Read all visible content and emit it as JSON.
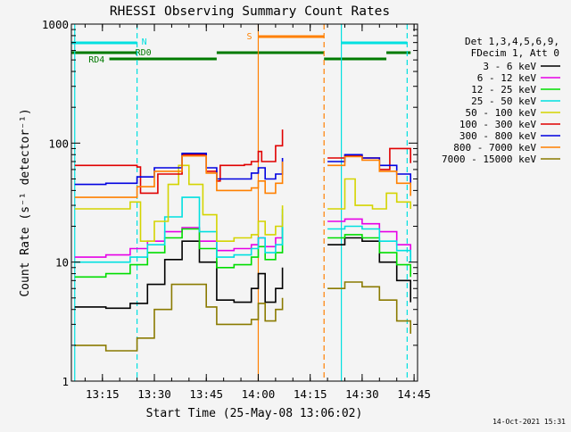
{
  "chart_data": {
    "type": "line",
    "title": "RHESSI Observing Summary Count Rates",
    "xlabel": "Start Time (25-May-08 13:06:02)",
    "ylabel": "Count Rate (s⁻¹ detector⁻¹)",
    "yscale": "log",
    "ylim": [
      1,
      1000
    ],
    "xlim": [
      "13:06:02",
      "14:46:00"
    ],
    "x_ticks": [
      "13:15",
      "13:30",
      "13:45",
      "14:00",
      "14:15",
      "14:30",
      "14:45"
    ],
    "y_ticks": [
      "1",
      "10",
      "100",
      "1000"
    ],
    "grid": false,
    "timestamp": "14-Oct-2021 15:31",
    "legend": {
      "placement": "right",
      "header": [
        "Det 1,3,4,5,6,9,",
        "FDecim 1, Att 0"
      ],
      "entries": [
        {
          "label": "3 - 6 keV",
          "color": "#000000"
        },
        {
          "label": "6 - 12 keV",
          "color": "#e600e6"
        },
        {
          "label": "12 - 25 keV",
          "color": "#00dd00"
        },
        {
          "label": "25 - 50 keV",
          "color": "#00e0e0"
        },
        {
          "label": "50 - 100 keV",
          "color": "#d4d400"
        },
        {
          "label": "100 - 300 keV",
          "color": "#e00000"
        },
        {
          "label": "300 - 800 keV",
          "color": "#0000e0"
        },
        {
          "label": "800 - 7000 keV",
          "color": "#ff8000"
        },
        {
          "label": "7000 - 15000 keV",
          "color": "#8a7a00"
        }
      ]
    },
    "flag_labels": {
      "n": "N",
      "rd0": "RD0",
      "rd4": "RD4",
      "s": "S"
    },
    "flags": {
      "night": {
        "color": "#00e0e0",
        "intervals": [
          [
            "13:06",
            "13:25"
          ],
          [
            "14:24",
            "14:43"
          ]
        ]
      },
      "rd0": {
        "color": "#007a00",
        "intervals": [
          [
            "13:06",
            "13:25"
          ],
          [
            "13:48",
            "14:19"
          ],
          [
            "14:37",
            "14:44"
          ]
        ]
      },
      "rd4": {
        "color": "#007a00",
        "intervals": [
          [
            "13:17",
            "13:48"
          ],
          [
            "14:19",
            "14:37"
          ]
        ]
      },
      "saa": {
        "color": "#ff8000",
        "intervals": [
          [
            "14:00",
            "14:19"
          ]
        ]
      }
    },
    "markers": [
      {
        "time": "13:07",
        "color": "#00e0e0",
        "style": "solid"
      },
      {
        "time": "13:25",
        "color": "#00e0e0",
        "style": "dashed"
      },
      {
        "time": "14:00",
        "color": "#ff8000",
        "style": "solid"
      },
      {
        "time": "14:19",
        "color": "#ff8000",
        "style": "dashed"
      },
      {
        "time": "14:24",
        "color": "#00e0e0",
        "style": "solid"
      },
      {
        "time": "14:43",
        "color": "#00e0e0",
        "style": "dashed"
      }
    ],
    "series": [
      {
        "name": "3 - 6 keV",
        "color": "#000000",
        "points": [
          [
            "13:07",
            4.2
          ],
          [
            "13:16",
            4.1
          ],
          [
            "13:23",
            4.5
          ],
          [
            "13:28",
            6.5
          ],
          [
            "13:33",
            10.5
          ],
          [
            "13:38",
            15.0
          ],
          [
            "13:43",
            10.0
          ],
          [
            "13:48",
            4.8
          ],
          [
            "13:53",
            4.6
          ],
          [
            "13:58",
            6.0
          ],
          [
            "14:00",
            8.0
          ],
          [
            "14:02",
            4.6
          ],
          [
            "14:05",
            6.0
          ],
          [
            "14:07",
            9.0
          ],
          null,
          [
            "14:20",
            14.0
          ],
          [
            "14:25",
            16.0
          ],
          [
            "14:30",
            15.0
          ],
          [
            "14:35",
            10.0
          ],
          [
            "14:40",
            7.0
          ],
          [
            "14:44",
            4.6
          ]
        ]
      },
      {
        "name": "6 - 12 keV",
        "color": "#e600e6",
        "points": [
          [
            "13:07",
            11.0
          ],
          [
            "13:16",
            11.5
          ],
          [
            "13:23",
            13.0
          ],
          [
            "13:28",
            15.0
          ],
          [
            "13:33",
            18.0
          ],
          [
            "13:38",
            19.5
          ],
          [
            "13:43",
            15.0
          ],
          [
            "13:48",
            12.5
          ],
          [
            "13:53",
            13.0
          ],
          [
            "13:58",
            14.0
          ],
          [
            "14:00",
            16.0
          ],
          [
            "14:02",
            13.5
          ],
          [
            "14:05",
            16.0
          ],
          [
            "14:07",
            25.0
          ],
          null,
          [
            "14:20",
            22.0
          ],
          [
            "14:25",
            23.0
          ],
          [
            "14:30",
            21.0
          ],
          [
            "14:35",
            18.0
          ],
          [
            "14:40",
            14.0
          ],
          [
            "14:44",
            11.0
          ]
        ]
      },
      {
        "name": "12 - 25 keV",
        "color": "#00dd00",
        "points": [
          [
            "13:07",
            7.5
          ],
          [
            "13:16",
            8.0
          ],
          [
            "13:23",
            9.5
          ],
          [
            "13:28",
            12.0
          ],
          [
            "13:33",
            16.0
          ],
          [
            "13:38",
            19.0
          ],
          [
            "13:43",
            13.0
          ],
          [
            "13:48",
            9.0
          ],
          [
            "13:53",
            9.5
          ],
          [
            "13:58",
            11.0
          ],
          [
            "14:00",
            13.5
          ],
          [
            "14:02",
            10.5
          ],
          [
            "14:05",
            12.0
          ],
          [
            "14:07",
            20.0
          ],
          null,
          [
            "14:20",
            16.0
          ],
          [
            "14:25",
            17.0
          ],
          [
            "14:30",
            16.0
          ],
          [
            "14:35",
            12.0
          ],
          [
            "14:40",
            9.5
          ],
          [
            "14:44",
            7.5
          ]
        ]
      },
      {
        "name": "25 - 50 keV",
        "color": "#00e0e0",
        "points": [
          [
            "13:07",
            10.0
          ],
          [
            "13:16",
            10.0
          ],
          [
            "13:23",
            11.0
          ],
          [
            "13:28",
            14.0
          ],
          [
            "13:33",
            24.0
          ],
          [
            "13:38",
            35.0
          ],
          [
            "13:43",
            18.0
          ],
          [
            "13:48",
            11.0
          ],
          [
            "13:53",
            11.5
          ],
          [
            "13:58",
            13.0
          ],
          [
            "14:00",
            16.0
          ],
          [
            "14:02",
            12.0
          ],
          [
            "14:05",
            14.0
          ],
          [
            "14:07",
            28.0
          ],
          null,
          [
            "14:20",
            19.0
          ],
          [
            "14:25",
            20.0
          ],
          [
            "14:30",
            19.0
          ],
          [
            "14:35",
            15.0
          ],
          [
            "14:40",
            12.5
          ],
          [
            "14:44",
            10.0
          ]
        ]
      },
      {
        "name": "50 - 100 keV",
        "color": "#d4d400",
        "points": [
          [
            "13:07",
            28.0
          ],
          [
            "13:16",
            28.0
          ],
          [
            "13:23",
            32.0
          ],
          [
            "13:26",
            15.0
          ],
          [
            "13:30",
            22.0
          ],
          [
            "13:34",
            45.0
          ],
          [
            "13:37",
            65.0
          ],
          [
            "13:40",
            45.0
          ],
          [
            "13:44",
            25.0
          ],
          [
            "13:48",
            15.0
          ],
          [
            "13:53",
            16.0
          ],
          [
            "13:58",
            17.0
          ],
          [
            "14:00",
            22.0
          ],
          [
            "14:02",
            17.0
          ],
          [
            "14:05",
            20.0
          ],
          [
            "14:07",
            30.0
          ],
          null,
          [
            "14:20",
            28.0
          ],
          [
            "14:25",
            50.0
          ],
          [
            "14:28",
            30.0
          ],
          [
            "14:33",
            28.0
          ],
          [
            "14:37",
            38.0
          ],
          [
            "14:40",
            32.0
          ],
          [
            "14:44",
            28.0
          ]
        ]
      },
      {
        "name": "100 - 300 keV",
        "color": "#e00000",
        "points": [
          [
            "13:07",
            65.0
          ],
          [
            "13:16",
            65.0
          ],
          [
            "13:25",
            63.0
          ],
          [
            "13:26",
            38.0
          ],
          [
            "13:31",
            55.0
          ],
          [
            "13:38",
            80.0
          ],
          [
            "13:45",
            58.0
          ],
          [
            "13:48",
            48.0
          ],
          [
            "13:49",
            65.0
          ],
          [
            "13:56",
            66.0
          ],
          [
            "13:58",
            70.0
          ],
          [
            "14:00",
            85.0
          ],
          [
            "14:01",
            70.0
          ],
          [
            "14:05",
            95.0
          ],
          [
            "14:07",
            130.0
          ],
          null,
          [
            "14:20",
            75.0
          ],
          [
            "14:25",
            78.0
          ],
          [
            "14:30",
            75.0
          ],
          [
            "14:35",
            60.0
          ],
          [
            "14:38",
            90.0
          ],
          [
            "14:44",
            68.0
          ]
        ]
      },
      {
        "name": "300 - 800 keV",
        "color": "#0000e0",
        "points": [
          [
            "13:07",
            45.0
          ],
          [
            "13:16",
            46.0
          ],
          [
            "13:25",
            52.0
          ],
          [
            "13:30",
            62.0
          ],
          [
            "13:38",
            82.0
          ],
          [
            "13:45",
            62.0
          ],
          [
            "13:48",
            50.0
          ],
          [
            "13:53",
            50.0
          ],
          [
            "13:58",
            56.0
          ],
          [
            "14:00",
            62.0
          ],
          [
            "14:02",
            50.0
          ],
          [
            "14:05",
            55.0
          ],
          [
            "14:07",
            75.0
          ],
          null,
          [
            "14:20",
            70.0
          ],
          [
            "14:25",
            80.0
          ],
          [
            "14:30",
            75.0
          ],
          [
            "14:35",
            65.0
          ],
          [
            "14:40",
            55.0
          ],
          [
            "14:44",
            45.0
          ]
        ]
      },
      {
        "name": "800 - 7000 keV",
        "color": "#ff8000",
        "points": [
          [
            "13:07",
            35.0
          ],
          [
            "13:16",
            35.0
          ],
          [
            "13:25",
            43.0
          ],
          [
            "13:30",
            58.0
          ],
          [
            "13:38",
            78.0
          ],
          [
            "13:45",
            56.0
          ],
          [
            "13:48",
            40.0
          ],
          [
            "13:53",
            40.0
          ],
          [
            "13:58",
            42.0
          ],
          [
            "14:00",
            48.0
          ],
          [
            "14:02",
            38.0
          ],
          [
            "14:05",
            46.0
          ],
          [
            "14:07",
            70.0
          ],
          null,
          [
            "14:20",
            65.0
          ],
          [
            "14:25",
            77.0
          ],
          [
            "14:30",
            72.0
          ],
          [
            "14:35",
            58.0
          ],
          [
            "14:40",
            46.0
          ],
          [
            "14:44",
            36.0
          ]
        ]
      },
      {
        "name": "7000 - 15000 keV",
        "color": "#8a7a00",
        "points": [
          [
            "13:07",
            2.0
          ],
          [
            "13:16",
            1.8
          ],
          [
            "13:25",
            2.3
          ],
          [
            "13:30",
            4.0
          ],
          [
            "13:35",
            6.5
          ],
          [
            "13:40",
            6.5
          ],
          [
            "13:45",
            4.2
          ],
          [
            "13:48",
            3.0
          ],
          [
            "13:53",
            3.0
          ],
          [
            "13:58",
            3.3
          ],
          [
            "14:00",
            4.5
          ],
          [
            "14:02",
            3.2
          ],
          [
            "14:05",
            4.0
          ],
          [
            "14:07",
            5.0
          ],
          null,
          [
            "14:20",
            6.0
          ],
          [
            "14:25",
            6.8
          ],
          [
            "14:30",
            6.2
          ],
          [
            "14:35",
            4.8
          ],
          [
            "14:40",
            3.2
          ],
          [
            "14:44",
            2.5
          ]
        ]
      }
    ]
  }
}
